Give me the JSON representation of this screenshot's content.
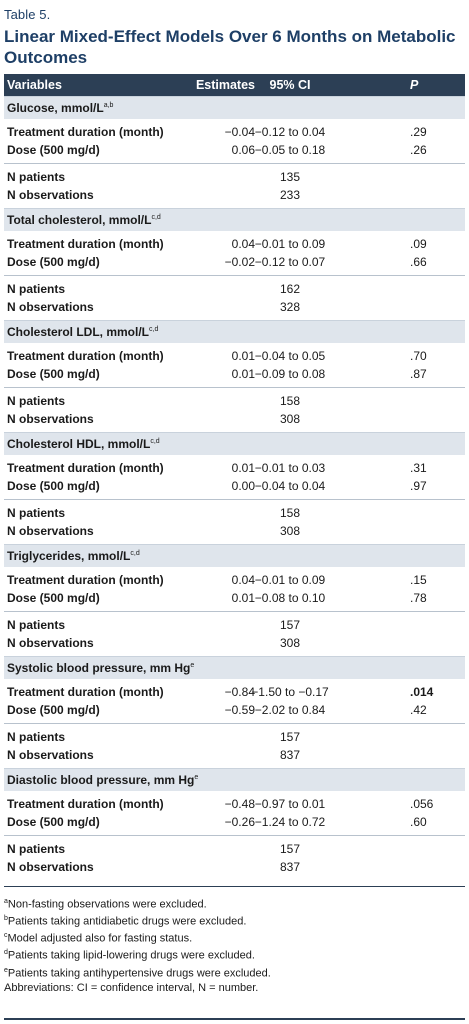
{
  "table_label": "Table 5.",
  "title": "Linear Mixed-Effect Models Over 6 Months on Metabolic Outcomes",
  "header": {
    "variables": "Variables",
    "estimates": "Estimates",
    "ci": "95% CI",
    "p": "P"
  },
  "sections": [
    {
      "name": "Glucose, mmol/L",
      "sup": "a,b",
      "rows": [
        {
          "label": "Treatment duration (month)",
          "est": "−0.04",
          "ci": "−0.12 to 0.04",
          "p": ".29",
          "bold_p": false
        },
        {
          "label": "Dose (500 mg/d)",
          "est": "0.06",
          "ci": "−0.05 to 0.18",
          "p": ".26",
          "bold_p": false
        }
      ],
      "n_patients_label": "N patients",
      "n_patients": "135",
      "n_obs_label": "N observations",
      "n_obs": "233"
    },
    {
      "name": "Total cholesterol, mmol/L",
      "sup": "c,d",
      "rows": [
        {
          "label": "Treatment duration (month)",
          "est": "0.04",
          "ci": "−0.01 to 0.09",
          "p": ".09",
          "bold_p": false
        },
        {
          "label": "Dose (500 mg/d)",
          "est": "−0.02",
          "ci": "−0.12 to 0.07",
          "p": ".66",
          "bold_p": false
        }
      ],
      "n_patients_label": "N patients",
      "n_patients": "162",
      "n_obs_label": "N observations",
      "n_obs": "328"
    },
    {
      "name": "Cholesterol LDL, mmol/L",
      "sup": "c,d",
      "rows": [
        {
          "label": "Treatment duration (month)",
          "est": "0.01",
          "ci": "−0.04 to 0.05",
          "p": ".70",
          "bold_p": false
        },
        {
          "label": "Dose (500 mg/d)",
          "est": "0.01",
          "ci": "−0.09 to 0.08",
          "p": ".87",
          "bold_p": false
        }
      ],
      "n_patients_label": "N patients",
      "n_patients": "158",
      "n_obs_label": "N observations",
      "n_obs": "308"
    },
    {
      "name": "Cholesterol HDL, mmol/L",
      "sup": "c,d",
      "rows": [
        {
          "label": "Treatment duration (month)",
          "est": "0.01",
          "ci": "−0.01 to 0.03",
          "p": ".31",
          "bold_p": false
        },
        {
          "label": "Dose (500 mg/d)",
          "est": "0.00",
          "ci": "−0.04 to 0.04",
          "p": ".97",
          "bold_p": false
        }
      ],
      "n_patients_label": "N patients",
      "n_patients": "158",
      "n_obs_label": "N observations",
      "n_obs": "308"
    },
    {
      "name": "Triglycerides, mmol/L",
      "sup": "c,d",
      "rows": [
        {
          "label": "Treatment duration (month)",
          "est": "0.04",
          "ci": "−0.01 to 0.09",
          "p": ".15",
          "bold_p": false
        },
        {
          "label": "Dose (500 mg/d)",
          "est": "0.01",
          "ci": "−0.08 to 0.10",
          "p": ".78",
          "bold_p": false
        }
      ],
      "n_patients_label": "N patients",
      "n_patients": "157",
      "n_obs_label": "N observations",
      "n_obs": "308"
    },
    {
      "name": "Systolic blood pressure, mm Hg",
      "sup": "e",
      "rows": [
        {
          "label": "Treatment duration (month)",
          "est": "−0.84",
          "ci": "−1.50 to −0.17",
          "p": ".014",
          "bold_p": true
        },
        {
          "label": "Dose (500 mg/d)",
          "est": "−0.59",
          "ci": "−2.02 to 0.84",
          "p": ".42",
          "bold_p": false
        }
      ],
      "n_patients_label": "N patients",
      "n_patients": "157",
      "n_obs_label": "N observations",
      "n_obs": "837"
    },
    {
      "name": "Diastolic blood pressure, mm Hg",
      "sup": "e",
      "rows": [
        {
          "label": "Treatment duration (month)",
          "est": "−0.48",
          "ci": "−0.97 to 0.01",
          "p": ".056",
          "bold_p": false
        },
        {
          "label": "Dose (500 mg/d)",
          "est": "−0.26",
          "ci": "−1.24 to 0.72",
          "p": ".60",
          "bold_p": false
        }
      ],
      "n_patients_label": "N patients",
      "n_patients": "157",
      "n_obs_label": "N observations",
      "n_obs": "837"
    }
  ],
  "footnotes": [
    {
      "sup": "a",
      "text": "Non-fasting observations were excluded."
    },
    {
      "sup": "b",
      "text": "Patients taking antidiabetic drugs were excluded."
    },
    {
      "sup": "c",
      "text": "Model adjusted also for fasting status."
    },
    {
      "sup": "d",
      "text": "Patients taking lipid-lowering drugs were excluded."
    },
    {
      "sup": "e",
      "text": "Patients taking antihypertensive drugs were excluded."
    }
  ],
  "abbreviations": "Abbreviations: CI = confidence interval, N = number.",
  "colors": {
    "title": "#1e3f66",
    "header_bg": "#2c3f55",
    "section_bg": "#dfe5ec"
  }
}
